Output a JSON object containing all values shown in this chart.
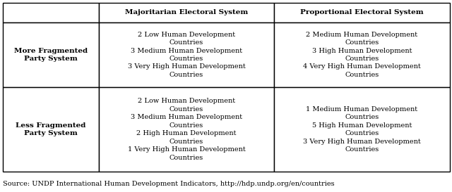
{
  "source": "Source: UNDP International Human Development Indicators, http://hdp.undp.org/en/countries",
  "col_headers": [
    "",
    "Majoritarian Electoral System",
    "Proportional Electoral System"
  ],
  "row_headers": [
    "More Fragmented\nParty System",
    "Less Fragmented\nParty System"
  ],
  "cell_contents": [
    [
      "2 Low Human Development\nCountries\n3 Medium Human Development\nCountries\n3 Very High Human Development\nCountries",
      "2 Medium Human Development\nCountries\n3 High Human Development\nCountries\n4 Very High Human Development\nCountries"
    ],
    [
      "2 Low Human Development\nCountries\n3 Medium Human Development\nCountries\n2 High Human Development\nCountries\n1 Very High Human Development\nCountries",
      "1 Medium Human Development\nCountries\n5 High Human Development\nCountries\n3 Very High Human Development\nCountries"
    ]
  ],
  "background_color": "#ffffff",
  "border_color": "#000000",
  "header_fontsize": 7.5,
  "cell_fontsize": 7.0,
  "row_header_fontsize": 7.5,
  "source_fontsize": 7.0
}
